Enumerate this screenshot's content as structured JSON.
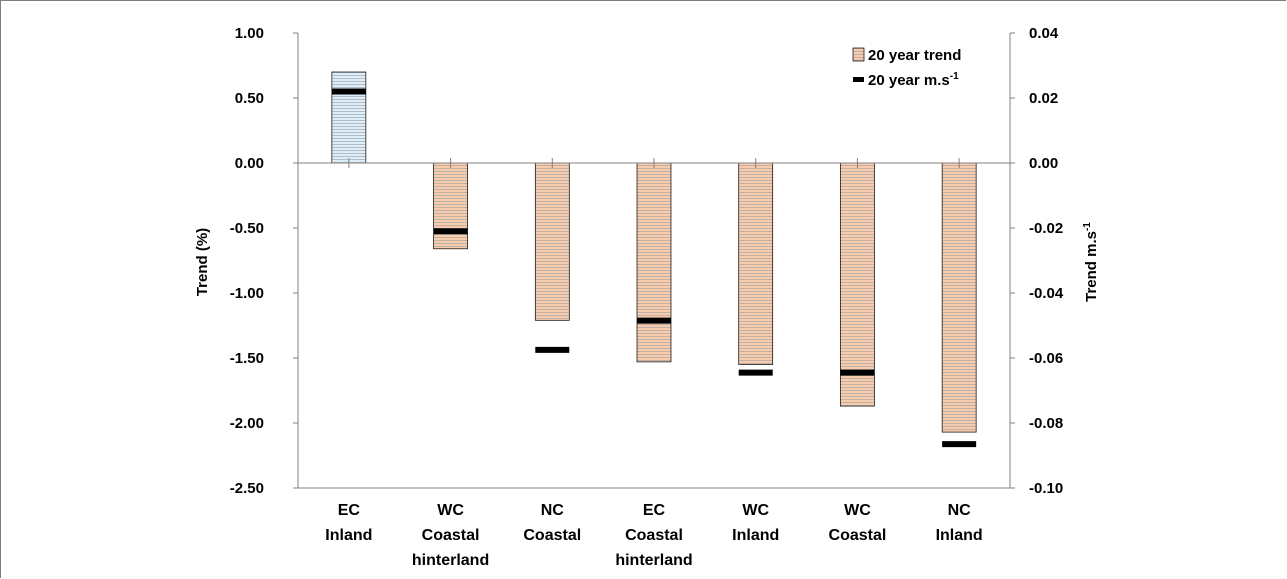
{
  "chart_data": {
    "type": "bar",
    "categories": [
      [
        "EC",
        "Inland"
      ],
      [
        "WC",
        "Coastal",
        "hinterland"
      ],
      [
        "NC",
        "Coastal"
      ],
      [
        "EC",
        "Coastal",
        "hinterland"
      ],
      [
        "WC",
        "Inland"
      ],
      [
        "WC",
        "Coastal"
      ],
      [
        "NC",
        "Inland"
      ]
    ],
    "series": [
      {
        "name": "20 year trend",
        "axis": "left",
        "values": [
          0.7,
          -0.66,
          -1.21,
          -1.53,
          -1.55,
          -1.87,
          -2.07
        ]
      },
      {
        "name": "20 year m.s",
        "axis": "right",
        "values": [
          0.022,
          -0.021,
          -0.0575,
          -0.0485,
          -0.0645,
          -0.0645,
          -0.0865
        ]
      }
    ],
    "legend_superscript": "-1",
    "ylabel": "Trend (%)",
    "y2label": "Trend m.s",
    "y2label_superscript": "-1",
    "ylim": [
      -2.5,
      1.0
    ],
    "y2lim": [
      -0.1,
      0.04
    ],
    "yticks": [
      "1.00",
      "0.50",
      "0.00",
      "-0.50",
      "-1.00",
      "-1.50",
      "-2.00",
      "-2.50"
    ],
    "y2ticks": [
      "0.04",
      "0.02",
      "0.00",
      "-0.02",
      "-0.04",
      "-0.06",
      "-0.08",
      "-0.10"
    ],
    "colors": {
      "positive_fill": "#dceefb",
      "negative_fill": "#f8cbad",
      "stripe": "#7f7f7f",
      "marker": "#000000"
    },
    "legend_position": "top-right",
    "grid": false
  }
}
